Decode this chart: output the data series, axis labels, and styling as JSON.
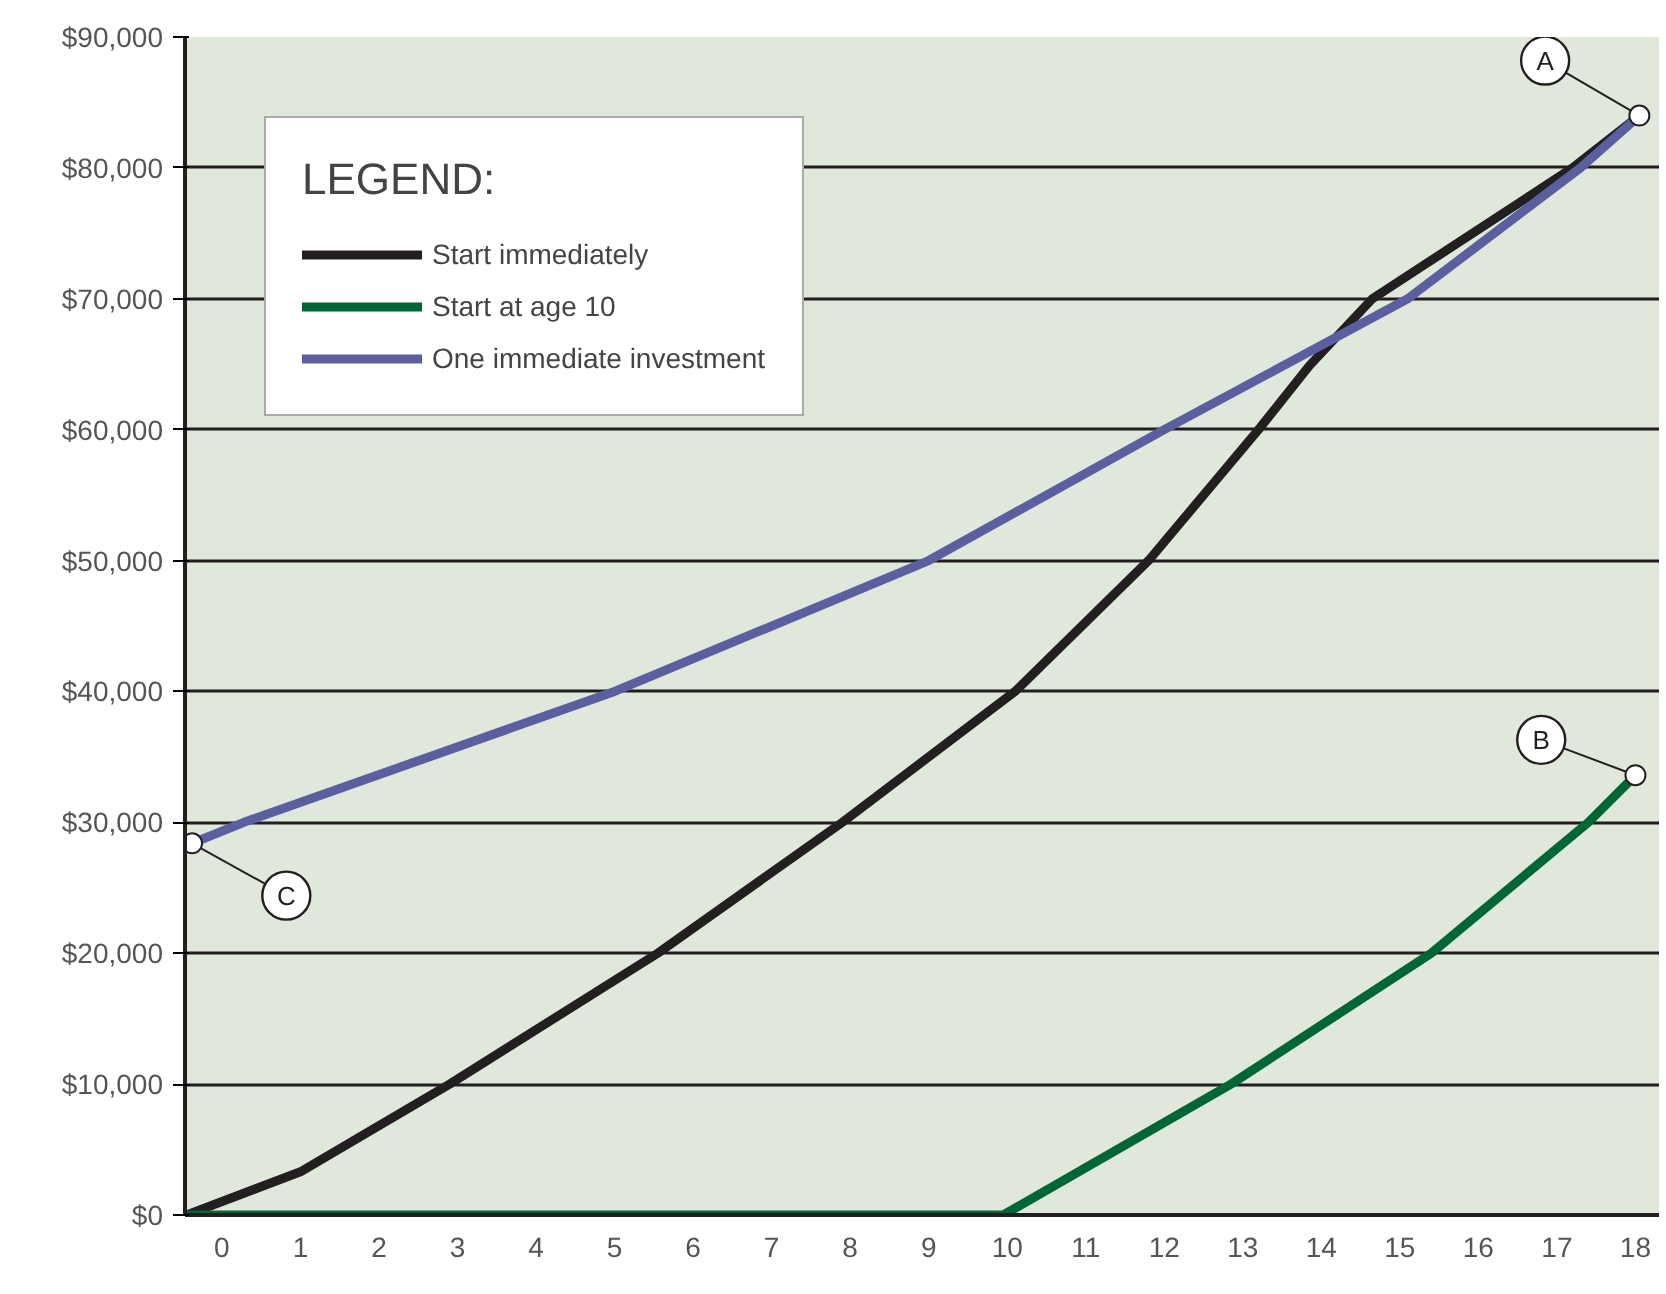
{
  "chart_data": {
    "type": "line",
    "legend_title": "LEGEND:",
    "legend": "top left",
    "grid": "y",
    "line_style": "solid",
    "marker": "none",
    "xlim": [
      -0.47,
      18.3
    ],
    "ylim": [
      0,
      90000
    ],
    "xticks": [
      0,
      1,
      2,
      3,
      4,
      5,
      6,
      7,
      8,
      9,
      10,
      11,
      12,
      13,
      14,
      15,
      16,
      17,
      18
    ],
    "yticks": [
      {
        "value": 0,
        "label": "$0"
      },
      {
        "value": 10000,
        "label": "$10,000"
      },
      {
        "value": 20000,
        "label": "$20,000"
      },
      {
        "value": 30000,
        "label": "$30,000"
      },
      {
        "value": 40000,
        "label": "$40,000"
      },
      {
        "value": 50000,
        "label": "$50,000"
      },
      {
        "value": 60000,
        "label": "$60,000"
      },
      {
        "value": 70000,
        "label": "$70,000"
      },
      {
        "value": 80000,
        "label": "$80,000"
      },
      {
        "value": 90000,
        "label": "$90,000"
      }
    ],
    "series": [
      {
        "name": "Start immediately",
        "color": "#231f20",
        "x": [
          -0.45,
          1,
          2.9,
          5.55,
          7.9,
          10.1,
          11.8,
          13.2,
          13.85,
          14.65,
          17.2,
          18.05
        ],
        "values": [
          0,
          3300,
          10000,
          20000,
          30000,
          40000,
          50000,
          60000,
          64900,
          70000,
          80000,
          84000
        ]
      },
      {
        "name": "Start at age 10",
        "color": "#006633",
        "x": [
          -0.45,
          9.95,
          12.85,
          15.4,
          17.4,
          18.0
        ],
        "values": [
          0,
          0,
          10000,
          20000,
          30000,
          33600
        ]
      },
      {
        "name": "One immediate investment",
        "color": "#5b5fa0",
        "x": [
          -0.38,
          0.28,
          5.0,
          9.0,
          12.0,
          15.1,
          17.3,
          18.05
        ],
        "values": [
          28400,
          30000,
          40000,
          50000,
          60000,
          70000,
          80000,
          84000
        ]
      }
    ],
    "annotations": [
      {
        "text": "A",
        "x": 18.05,
        "y": 84000
      },
      {
        "text": "B",
        "x": 18.0,
        "y": 33600
      },
      {
        "text": "C",
        "x": -0.38,
        "y": 28400
      }
    ]
  }
}
